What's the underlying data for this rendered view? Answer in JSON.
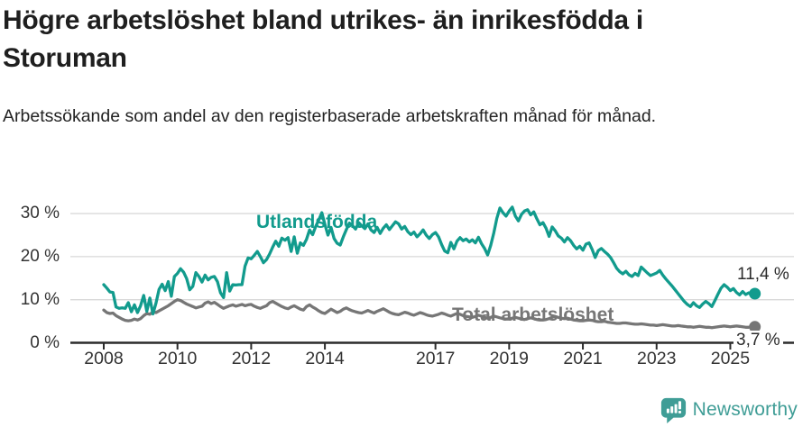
{
  "header": {
    "title": "Högre arbetslöshet bland utrikes- än inrikesfödda i Storuman",
    "subtitle": "Arbetssökande som andel av den registerbaserade arbetskraften månad för månad."
  },
  "chart_data": {
    "type": "line",
    "unit": "%",
    "frequency": "monthly",
    "x_start_year": 2008,
    "x_end": "2025-09",
    "ylim": [
      0,
      32
    ],
    "yticks": [
      0,
      10,
      20,
      30
    ],
    "ytick_suffix": " %",
    "xticks": [
      2008,
      2010,
      2012,
      2014,
      2017,
      2019,
      2021,
      2023,
      2025
    ],
    "grid": "horizontal-light",
    "colors": {
      "grid": "#d9d9d9",
      "axis": "#2b2b2b",
      "tick_text": "#333333"
    },
    "series": [
      {
        "name": "Utlandsfödda",
        "color": "#129b8d",
        "end_label": "11,4 %",
        "end_value": 11.4,
        "values": [
          13.5,
          12.7,
          11.8,
          11.7,
          8.3,
          8.0,
          8.1,
          8.0,
          9.3,
          7.2,
          8.8,
          7.0,
          8.6,
          11.0,
          7.3,
          10.4,
          6.7,
          9.2,
          12.4,
          13.6,
          12.1,
          14.2,
          10.8,
          15.4,
          16.1,
          17.2,
          16.4,
          14.9,
          12.3,
          13.1,
          16.3,
          15.4,
          14.1,
          15.7,
          14.6,
          15.2,
          15.4,
          14.2,
          11.6,
          10.5,
          16.3,
          12.0,
          13.5,
          13.4,
          13.5,
          13.5,
          17.8,
          19.7,
          19.5,
          20.3,
          21.2,
          20.0,
          18.6,
          19.3,
          20.6,
          22.2,
          23.6,
          22.4,
          24.3,
          23.8,
          24.4,
          21.2,
          24.6,
          20.8,
          23.2,
          22.6,
          24.0,
          26.2,
          25.1,
          27.0,
          28.5,
          30.2,
          27.5,
          25.0,
          26.8,
          24.2,
          23.1,
          22.7,
          24.6,
          26.3,
          27.8,
          27.2,
          26.4,
          27.9,
          27.2,
          26.5,
          27.6,
          26.2,
          25.6,
          26.8,
          25.4,
          26.6,
          27.4,
          26.3,
          27.2,
          28.1,
          27.6,
          26.4,
          27.0,
          25.8,
          25.1,
          25.7,
          24.6,
          25.3,
          26.2,
          25.0,
          24.2,
          25.1,
          25.6,
          24.6,
          22.8,
          21.3,
          20.9,
          23.3,
          21.8,
          23.6,
          24.4,
          23.7,
          24.1,
          23.4,
          23.9,
          23.2,
          24.5,
          23.0,
          21.9,
          20.4,
          22.6,
          25.5,
          28.9,
          31.3,
          30.2,
          29.4,
          30.6,
          31.5,
          29.4,
          28.3,
          29.8,
          30.6,
          30.9,
          29.7,
          30.4,
          28.8,
          27.4,
          27.9,
          26.6,
          24.7,
          26.9,
          26.0,
          24.8,
          24.3,
          23.4,
          24.4,
          23.7,
          22.6,
          21.8,
          22.4,
          21.5,
          22.9,
          23.2,
          21.7,
          19.8,
          21.4,
          21.9,
          21.2,
          20.6,
          19.8,
          18.6,
          17.3,
          16.5,
          16.0,
          16.6,
          15.8,
          15.4,
          16.1,
          15.6,
          17.6,
          16.9,
          16.2,
          15.6,
          15.9,
          16.2,
          16.8,
          15.7,
          14.8,
          14.0,
          13.2,
          12.3,
          11.4,
          10.5,
          9.6,
          8.9,
          8.4,
          9.3,
          8.6,
          8.2,
          9.0,
          9.6,
          9.1,
          8.4,
          9.8,
          11.3,
          12.7,
          13.5,
          12.9,
          12.1,
          12.6,
          11.7,
          11.1,
          11.9,
          11.2,
          11.6,
          11.0,
          11.4
        ]
      },
      {
        "name": "Total arbetslöshet",
        "color": "#767676",
        "end_label": "3,7 %",
        "end_value": 3.7,
        "values": [
          7.6,
          7.0,
          6.8,
          6.9,
          6.3,
          5.9,
          5.5,
          5.2,
          5.1,
          5.2,
          5.5,
          5.3,
          5.6,
          6.3,
          6.8,
          6.6,
          7.2,
          7.0,
          7.4,
          7.8,
          8.2,
          8.6,
          9.1,
          9.6,
          10.0,
          9.8,
          9.4,
          9.0,
          8.7,
          8.4,
          8.1,
          8.3,
          8.5,
          9.2,
          9.5,
          9.1,
          9.4,
          8.9,
          8.4,
          8.0,
          8.3,
          8.6,
          8.8,
          8.5,
          8.7,
          8.9,
          8.6,
          8.8,
          8.9,
          8.5,
          8.2,
          8.0,
          8.3,
          8.6,
          9.3,
          9.6,
          9.2,
          8.8,
          8.4,
          8.1,
          7.9,
          8.3,
          8.6,
          8.2,
          7.8,
          7.6,
          8.4,
          8.8,
          8.3,
          7.9,
          7.4,
          7.0,
          6.8,
          7.3,
          7.8,
          7.4,
          7.0,
          7.3,
          7.8,
          8.1,
          7.7,
          7.4,
          7.2,
          7.0,
          6.9,
          7.2,
          7.5,
          7.2,
          6.9,
          7.3,
          7.6,
          7.9,
          7.5,
          7.1,
          6.8,
          6.6,
          6.5,
          6.8,
          7.1,
          6.9,
          6.6,
          6.4,
          6.7,
          7.0,
          6.8,
          6.5,
          6.3,
          6.2,
          6.4,
          6.6,
          6.9,
          6.7,
          6.4,
          6.2,
          6.5,
          6.8,
          6.6,
          6.3,
          6.1,
          6.0,
          5.9,
          6.1,
          6.4,
          6.2,
          5.9,
          5.7,
          5.9,
          6.2,
          6.0,
          5.8,
          5.6,
          5.5,
          5.5,
          5.7,
          5.9,
          5.7,
          5.5,
          5.4,
          5.6,
          5.8,
          5.6,
          5.4,
          5.3,
          5.3,
          5.4,
          5.6,
          5.9,
          6.1,
          5.9,
          5.7,
          5.6,
          5.7,
          5.5,
          5.3,
          5.2,
          5.1,
          5.1,
          5.2,
          5.3,
          5.2,
          5.0,
          4.9,
          4.9,
          5.0,
          4.8,
          4.7,
          4.6,
          4.5,
          4.5,
          4.6,
          4.6,
          4.5,
          4.4,
          4.3,
          4.3,
          4.4,
          4.3,
          4.2,
          4.1,
          4.1,
          4.0,
          4.1,
          4.2,
          4.1,
          4.0,
          3.9,
          3.9,
          4.0,
          3.9,
          3.8,
          3.7,
          3.7,
          3.6,
          3.7,
          3.8,
          3.7,
          3.6,
          3.6,
          3.5,
          3.6,
          3.7,
          3.8,
          3.9,
          3.8,
          3.7,
          3.8,
          3.9,
          3.8,
          3.7,
          3.6,
          3.6,
          3.7,
          3.7
        ]
      }
    ]
  },
  "logo": {
    "text": "Newsworthy",
    "color": "#3f9d96",
    "icon": "newsworthy-bar-chart-bubble-icon"
  }
}
